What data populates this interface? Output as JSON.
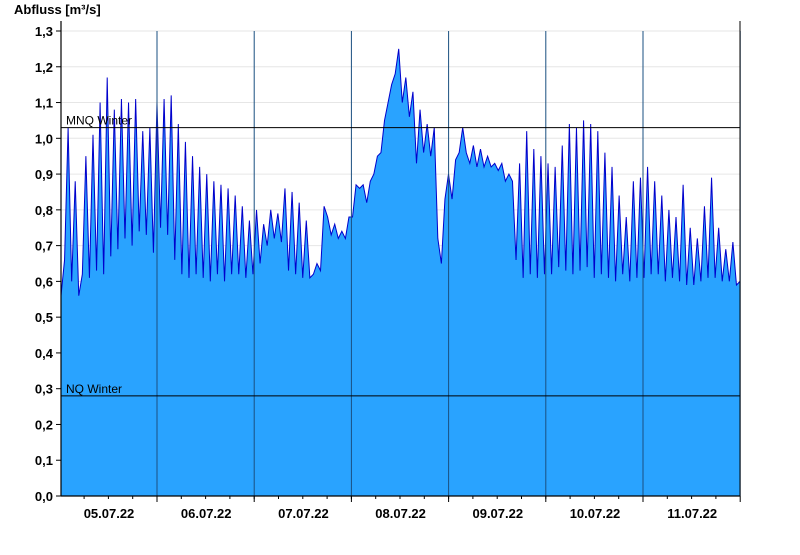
{
  "chart_data": {
    "type": "area",
    "title": "",
    "xlabel": "",
    "ylabel": "Abfluss [m³/s]",
    "ylim": [
      0,
      1.3
    ],
    "yticks": [
      "0,0",
      "0,1",
      "0,2",
      "0,3",
      "0,4",
      "0,5",
      "0,6",
      "0,7",
      "0,8",
      "0,9",
      "1,0",
      "1,1",
      "1,2",
      "1,3"
    ],
    "xlim_days": [
      "04.07.22 08:00",
      "11.07.22 24:00"
    ],
    "xticks": [
      "05.07.22",
      "06.07.22",
      "07.07.22",
      "08.07.22",
      "09.07.22",
      "10.07.22",
      "11.07.22"
    ],
    "reference_lines": [
      {
        "label": "MNQ Winter",
        "value": 1.03
      },
      {
        "label": "NQ Winter",
        "value": 0.28
      }
    ],
    "grid": "horizontal light lines, vertical day lines",
    "colors": {
      "fill": "#29a3ff",
      "outline": "#0000cc",
      "grid": "#e6e6e6",
      "axis": "#000000"
    },
    "series": [
      {
        "values": [
          0.56,
          0.66,
          1.03,
          0.6,
          0.88,
          0.56,
          0.62,
          0.95,
          0.61,
          1.01,
          0.63,
          1.1,
          0.62,
          1.17,
          0.67,
          1.08,
          0.69,
          1.11,
          0.72,
          1.1,
          0.7,
          1.11,
          0.74,
          1.02,
          0.73,
          1.03,
          0.68,
          1.1,
          0.75,
          1.11,
          0.73,
          1.12,
          0.66,
          1.04,
          0.62,
          0.99,
          0.61,
          0.95,
          0.62,
          0.92,
          0.61,
          0.9,
          0.6,
          0.88,
          0.62,
          0.87,
          0.6,
          0.86,
          0.62,
          0.84,
          0.62,
          0.81,
          0.61,
          0.77,
          0.62,
          0.8,
          0.65,
          0.76,
          0.7,
          0.8,
          0.72,
          0.79,
          0.71,
          0.86,
          0.63,
          0.85,
          0.62,
          0.82,
          0.61,
          0.77,
          0.61,
          0.62,
          0.65,
          0.63,
          0.81,
          0.78,
          0.73,
          0.76,
          0.72,
          0.74,
          0.72,
          0.78,
          0.78,
          0.87,
          0.86,
          0.87,
          0.82,
          0.88,
          0.9,
          0.95,
          0.96,
          1.05,
          1.1,
          1.15,
          1.18,
          1.25,
          1.1,
          1.17,
          1.06,
          1.13,
          0.93,
          1.08,
          0.96,
          1.04,
          0.95,
          1.03,
          0.72,
          0.65,
          0.83,
          0.9,
          0.83,
          0.94,
          0.96,
          1.03,
          0.96,
          0.93,
          0.98,
          0.92,
          0.97,
          0.92,
          0.95,
          0.92,
          0.93,
          0.91,
          0.93,
          0.88,
          0.9,
          0.88,
          0.66,
          0.93,
          0.61,
          1.02,
          0.62,
          0.97,
          0.61,
          0.95,
          0.62,
          0.93,
          0.62,
          0.92,
          0.64,
          0.98,
          0.63,
          1.04,
          0.62,
          1.03,
          0.63,
          1.05,
          0.64,
          1.04,
          0.61,
          1.02,
          0.62,
          0.96,
          0.61,
          0.92,
          0.6,
          0.84,
          0.62,
          0.78,
          0.6,
          0.88,
          0.61,
          0.89,
          0.61,
          0.92,
          0.62,
          0.88,
          0.62,
          0.84,
          0.6,
          0.8,
          0.61,
          0.78,
          0.6,
          0.87,
          0.59,
          0.75,
          0.59,
          0.72,
          0.6,
          0.81,
          0.61,
          0.89,
          0.61,
          0.75,
          0.6,
          0.69,
          0.6,
          0.71,
          0.59,
          0.6
        ]
      }
    ]
  }
}
